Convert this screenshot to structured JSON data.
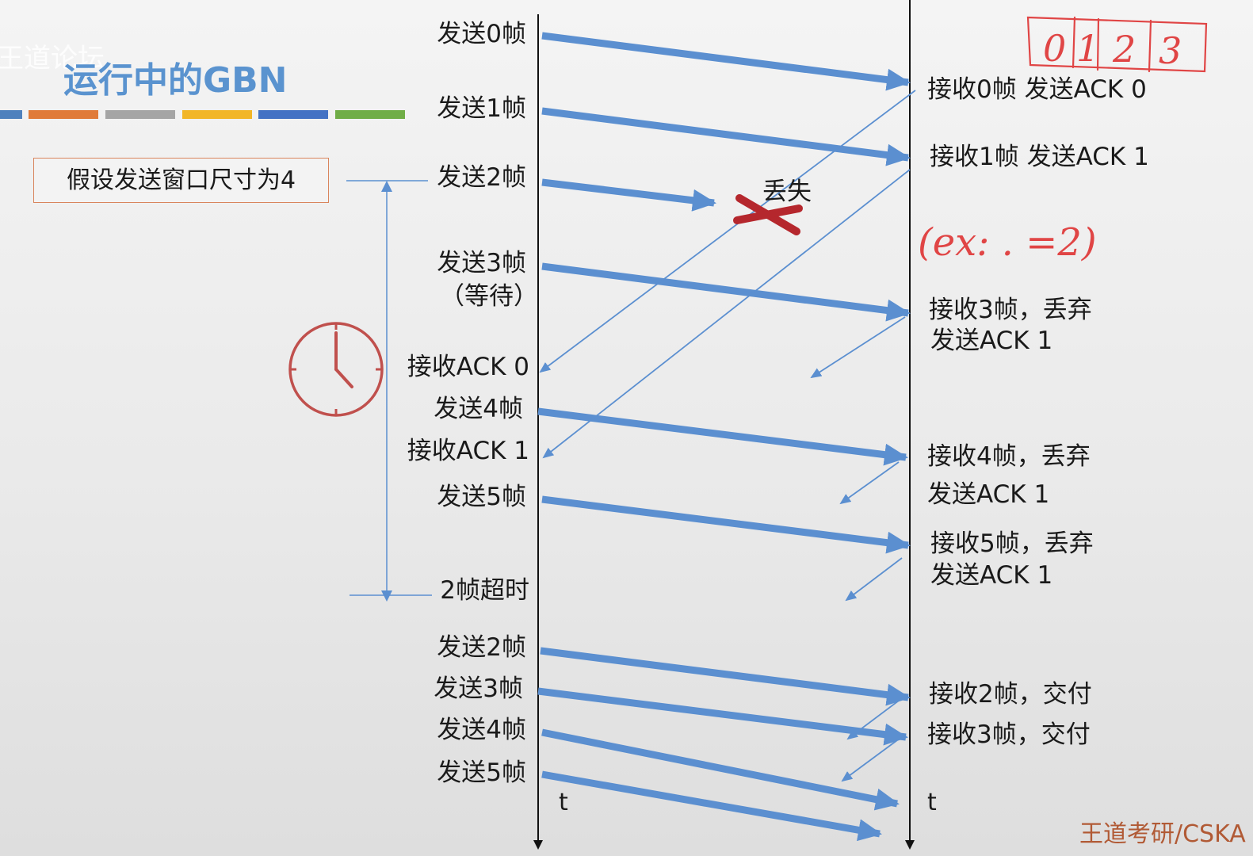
{
  "title": "运行中的GBN",
  "watermark": "王道论坛",
  "assumption": "假设发送窗口尺寸为4",
  "lost_label": "丢失",
  "sender_labels": {
    "send0": "发送0帧",
    "send1": "发送1帧",
    "send2": "发送2帧",
    "send3": "发送3帧",
    "send3_wait": "（等待）",
    "recv_ack0": "接收ACK 0",
    "send4": "发送4帧",
    "recv_ack1": "接收ACK 1",
    "send5": "发送5帧",
    "timeout": "2帧超时",
    "resend2": "发送2帧",
    "resend3": "发送3帧",
    "resend4": "发送4帧",
    "resend5": "发送5帧"
  },
  "receiver_labels": {
    "recv0": "接收0帧 发送ACK 0",
    "recv1": "接收1帧 发送ACK 1",
    "recv3_a": "接收3帧，丢弃",
    "recv3_b": "发送ACK 1",
    "recv4_a": "接收4帧，丢弃",
    "recv4_b": "发送ACK 1",
    "recv5_a": "接收5帧，丢弃",
    "recv5_b": "发送ACK 1",
    "recv2": "接收2帧，交付",
    "recv3_final": "接收3帧，交付"
  },
  "time_axis_label": "t",
  "handwriting": {
    "window_numbers": [
      "0",
      "1",
      "2",
      "3"
    ],
    "note": "(ex: . =2)"
  },
  "footer": "王道考研/CSKA",
  "colors": {
    "arrow_blue": "#5b8fd0",
    "title_blue": "#5a93cf",
    "lost_red": "#b5272d",
    "clock_red": "#c0504d",
    "handwriting_red": "#e04545",
    "footer_brown": "#b15a35",
    "assumption_border": "#d9855d"
  },
  "color_bars": [
    "#4f81bd",
    "#e07b39",
    "#a5a5a5",
    "#f2b628",
    "#4472c4",
    "#70ad47"
  ]
}
